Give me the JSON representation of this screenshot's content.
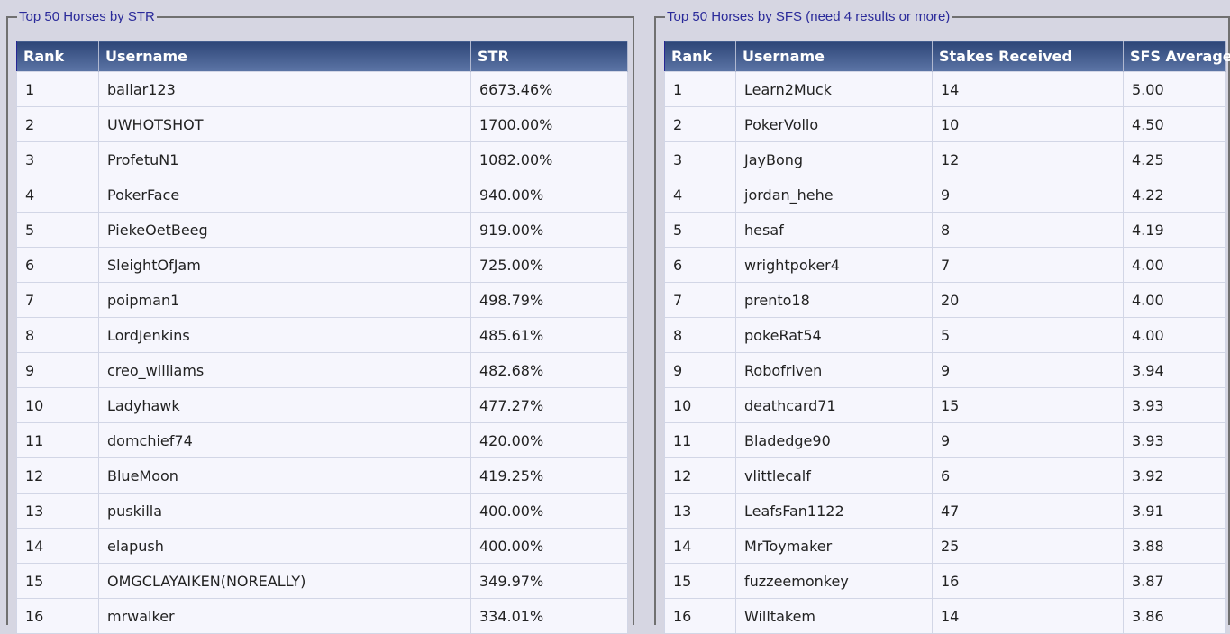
{
  "str_panel": {
    "title": "Top 50 Horses by STR",
    "headers": [
      "Rank",
      "Username",
      "STR"
    ],
    "rows": [
      [
        "1",
        "ballar123",
        "6673.46%"
      ],
      [
        "2",
        "UWHOTSHOT",
        "1700.00%"
      ],
      [
        "3",
        "ProfetuN1",
        "1082.00%"
      ],
      [
        "4",
        "PokerFace",
        "940.00%"
      ],
      [
        "5",
        "PiekeOetBeeg",
        "919.00%"
      ],
      [
        "6",
        "SleightOfJam",
        "725.00%"
      ],
      [
        "7",
        "poipman1",
        "498.79%"
      ],
      [
        "8",
        "LordJenkins",
        "485.61%"
      ],
      [
        "9",
        "creo_williams",
        "482.68%"
      ],
      [
        "10",
        "Ladyhawk",
        "477.27%"
      ],
      [
        "11",
        "domchief74",
        "420.00%"
      ],
      [
        "12",
        "BlueMoon",
        "419.25%"
      ],
      [
        "13",
        "puskilla",
        "400.00%"
      ],
      [
        "14",
        "elapush",
        "400.00%"
      ],
      [
        "15",
        "OMGCLAYAIKEN(NOREALLY)",
        "349.97%"
      ],
      [
        "16",
        "mrwalker",
        "334.01%"
      ]
    ]
  },
  "sfs_panel": {
    "title": "Top 50 Horses by SFS (need 4 results or more)",
    "headers": [
      "Rank",
      "Username",
      "Stakes Received",
      "SFS Average"
    ],
    "rows": [
      [
        "1",
        "Learn2Muck",
        "14",
        "5.00"
      ],
      [
        "2",
        "PokerVollo",
        "10",
        "4.50"
      ],
      [
        "3",
        "JayBong",
        "12",
        "4.25"
      ],
      [
        "4",
        "jordan_hehe",
        "9",
        "4.22"
      ],
      [
        "5",
        "hesaf",
        "8",
        "4.19"
      ],
      [
        "6",
        "wrightpoker4",
        "7",
        "4.00"
      ],
      [
        "7",
        "prento18",
        "20",
        "4.00"
      ],
      [
        "8",
        "pokeRat54",
        "5",
        "4.00"
      ],
      [
        "9",
        "Robofriven",
        "9",
        "3.94"
      ],
      [
        "10",
        "deathcard71",
        "15",
        "3.93"
      ],
      [
        "11",
        "Bladedge90",
        "9",
        "3.93"
      ],
      [
        "12",
        "vlittlecalf",
        "6",
        "3.92"
      ],
      [
        "13",
        "LeafsFan1122",
        "47",
        "3.91"
      ],
      [
        "14",
        "MrToymaker",
        "25",
        "3.88"
      ],
      [
        "15",
        "fuzzeemonkey",
        "16",
        "3.87"
      ],
      [
        "16",
        "Willtakem",
        "14",
        "3.86"
      ]
    ]
  }
}
